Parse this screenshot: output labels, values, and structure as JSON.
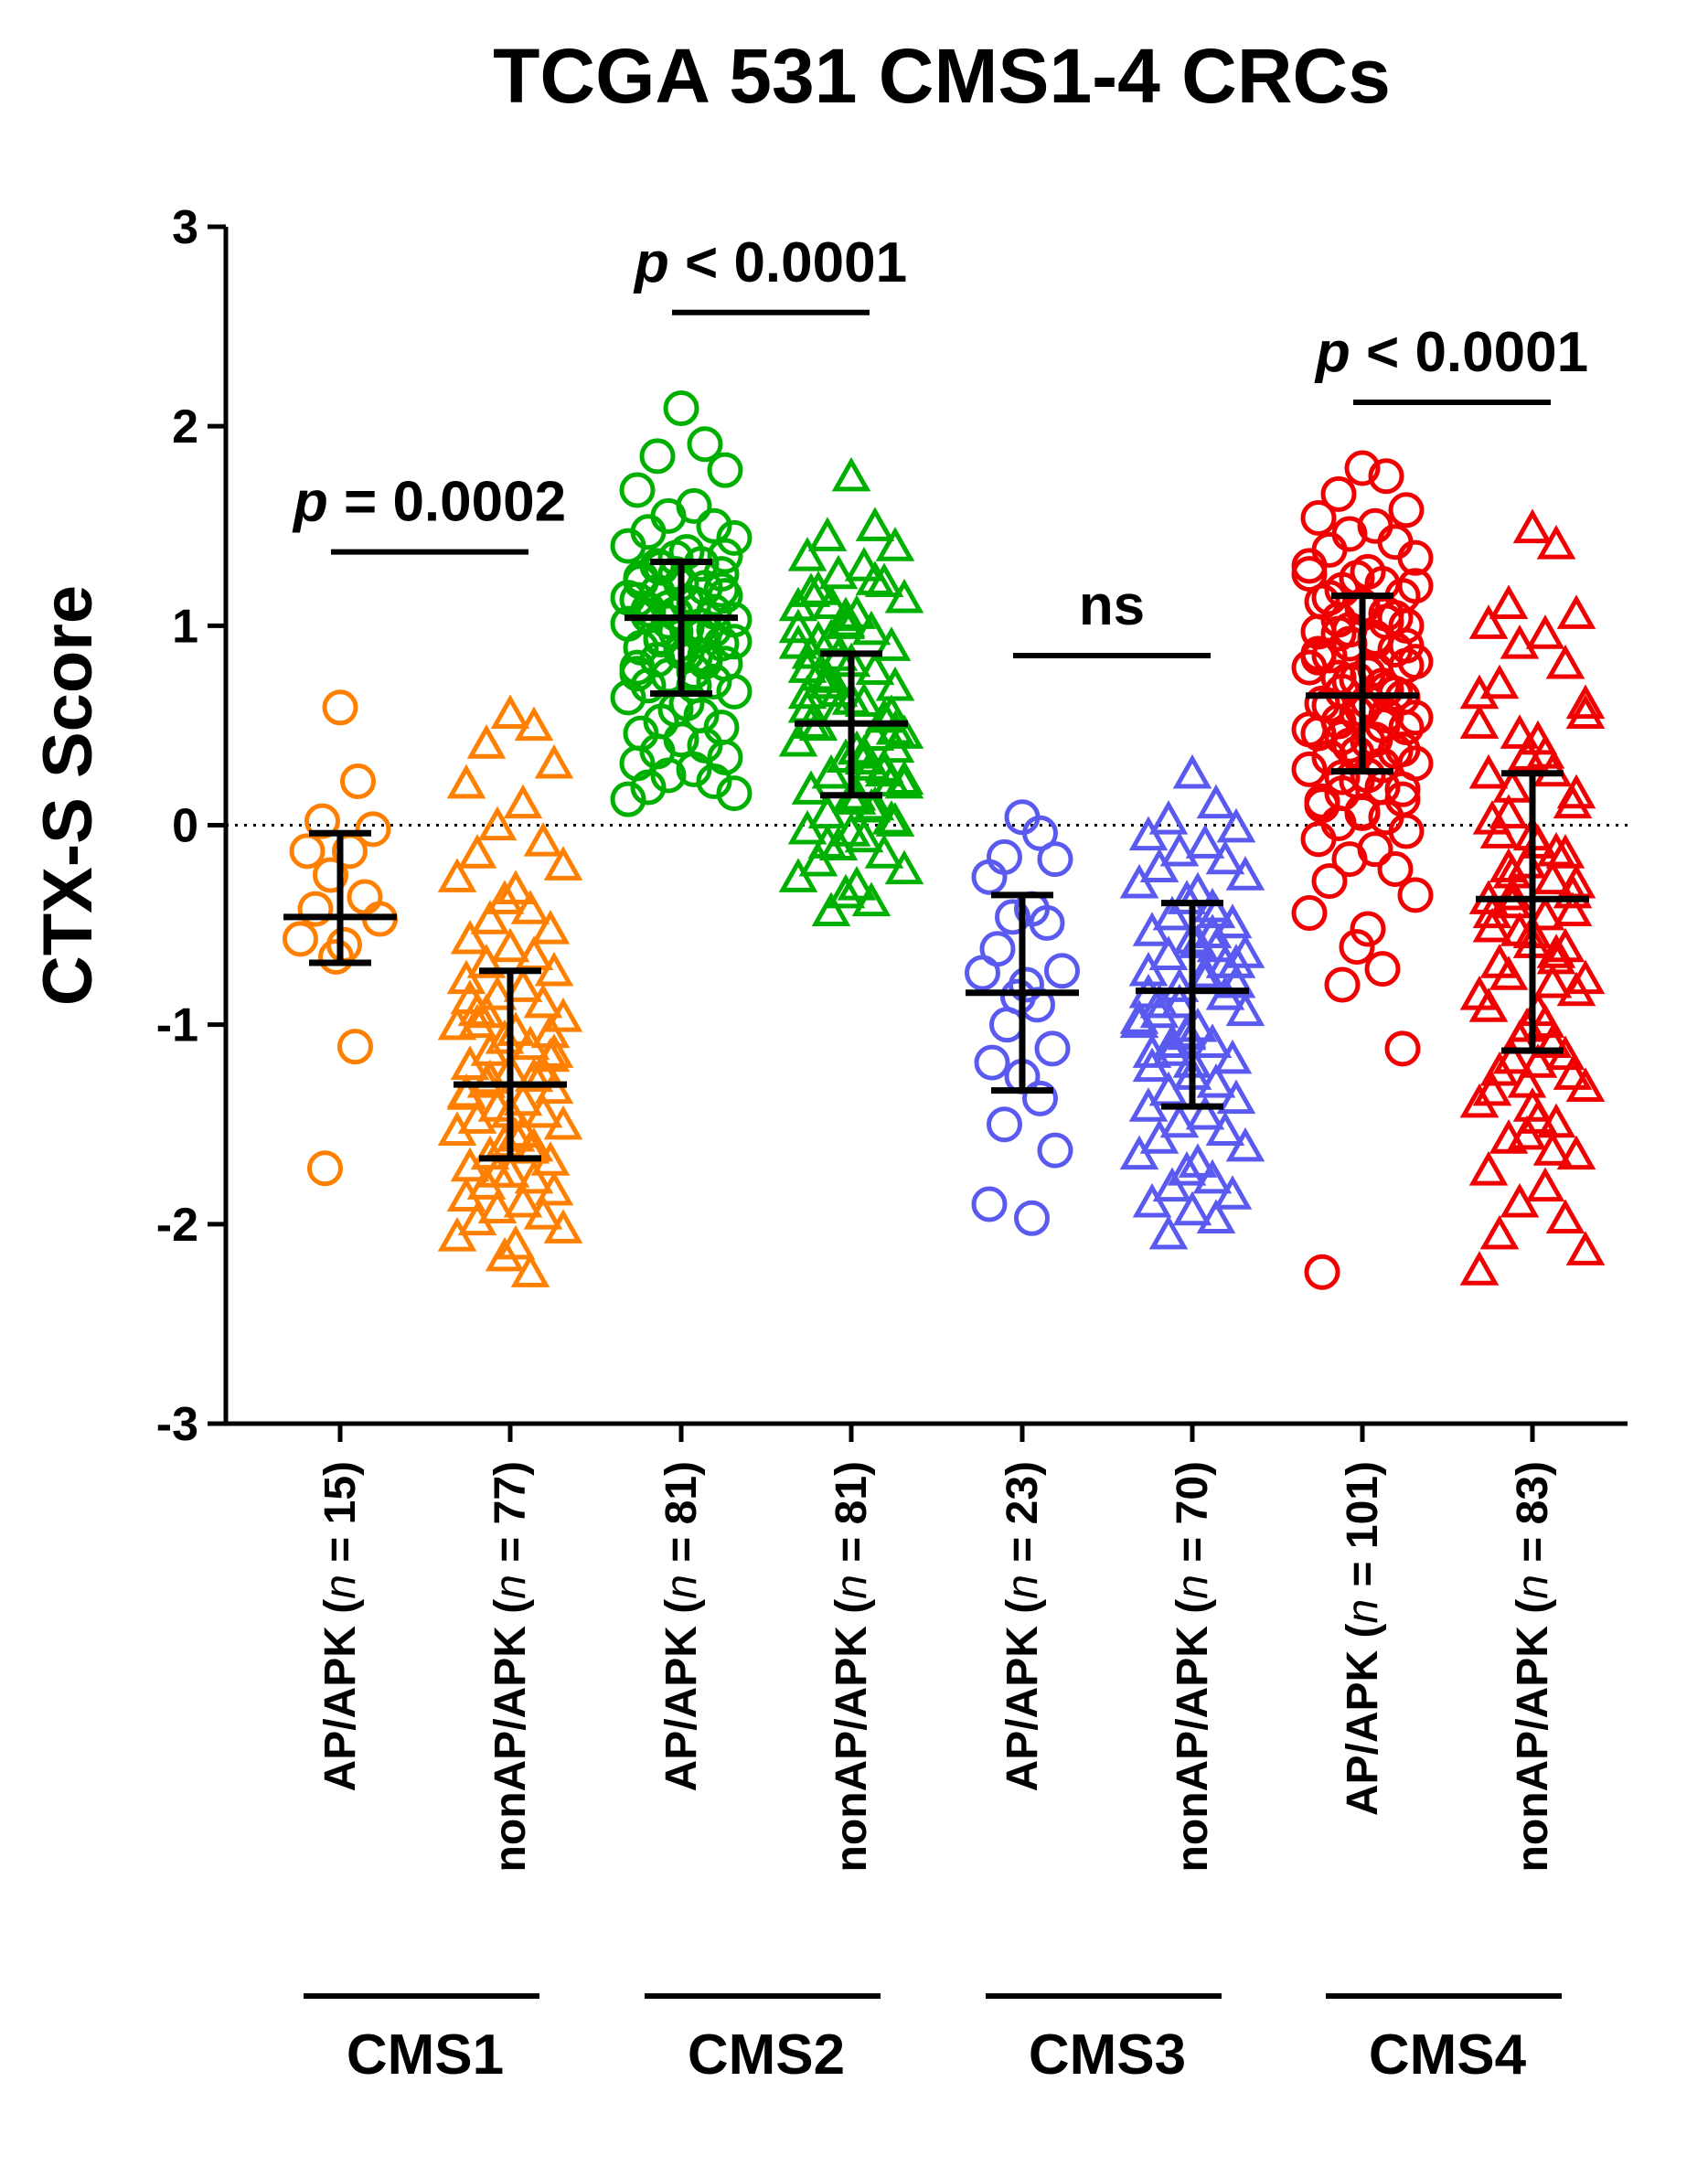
{
  "chart_data": {
    "type": "scatter",
    "title": "TCGA 531 CMS1-4 CRCs",
    "ylabel": "CTX-S Score",
    "xlabel": "",
    "ylim": [
      -3,
      3
    ],
    "yticks": [
      "3",
      "2",
      "1",
      "0",
      "-1",
      "-2",
      "-3"
    ],
    "reference_line": 0,
    "groups": [
      "CMS1",
      "CMS2",
      "CMS3",
      "CMS4"
    ],
    "categories": [
      {
        "label": "AP/APK",
        "n_label": "(n = 15)",
        "n_prefix": "(",
        "n_italic": "n",
        "n_suffix": " = 15)",
        "group": "CMS1",
        "color": "#FF8000",
        "marker": "circle",
        "n": 15,
        "mean": -0.46,
        "sd_low": -0.69,
        "sd_high": -0.04
      },
      {
        "label": "nonAP/APK",
        "n_label": "(n = 77)",
        "n_prefix": "(",
        "n_italic": "n",
        "n_suffix": " = 77)",
        "group": "CMS1",
        "color": "#FF8000",
        "marker": "triangle",
        "n": 77,
        "mean": -1.3,
        "sd_low": -1.67,
        "sd_high": -0.73
      },
      {
        "label": "AP/APK",
        "n_label": "(n = 81)",
        "n_prefix": "(",
        "n_italic": "n",
        "n_suffix": " = 81)",
        "group": "CMS2",
        "color": "#00B000",
        "marker": "circle",
        "n": 81,
        "mean": 1.04,
        "sd_low": 0.66,
        "sd_high": 1.32
      },
      {
        "label": "nonAP/APK",
        "n_label": "(n = 81)",
        "n_prefix": "(",
        "n_italic": "n",
        "n_suffix": " = 81)",
        "group": "CMS2",
        "color": "#00B000",
        "marker": "triangle",
        "n": 81,
        "mean": 0.51,
        "sd_low": 0.15,
        "sd_high": 0.86
      },
      {
        "label": "AP/APK",
        "n_label": "(n = 23)",
        "n_prefix": "(",
        "n_italic": "n",
        "n_suffix": " = 23)",
        "group": "CMS3",
        "color": "#5A5AF0",
        "marker": "circle",
        "n": 23,
        "mean": -0.84,
        "sd_low": -1.33,
        "sd_high": -0.35
      },
      {
        "label": "nonAP/APK",
        "n_label": "(n = 70)",
        "n_prefix": "(",
        "n_italic": "n",
        "n_suffix": " = 70)",
        "group": "CMS3",
        "color": "#5A5AF0",
        "marker": "triangle",
        "n": 70,
        "mean": -0.83,
        "sd_low": -1.41,
        "sd_high": -0.39
      },
      {
        "label": "AP/APK",
        "n_label": "(n = 101)",
        "n_prefix": "(",
        "n_italic": "n",
        "n_suffix": " = 101)",
        "group": "CMS4",
        "color": "#F00000",
        "marker": "circle",
        "n": 101,
        "mean": 0.65,
        "sd_low": 0.27,
        "sd_high": 1.15
      },
      {
        "label": "nonAP/APK",
        "n_label": "(n = 83)",
        "n_prefix": "(",
        "n_italic": "n",
        "n_suffix": " = 83)",
        "group": "CMS4",
        "color": "#F00000",
        "marker": "triangle",
        "n": 83,
        "mean": -0.37,
        "sd_low": -1.13,
        "sd_high": 0.26
      }
    ],
    "annotations": [
      {
        "text": "p = 0.0002",
        "p": "p",
        "rest": " = 0.0002",
        "between": [
          0,
          1
        ],
        "y": 1.37
      },
      {
        "text": "p < 0.0001",
        "p": "p",
        "rest": " < 0.0001",
        "between": [
          2,
          3
        ],
        "y": 2.57
      },
      {
        "text": "ns",
        "p": "",
        "rest": "ns",
        "between": [
          4,
          5
        ],
        "y": 0.85
      },
      {
        "text": "p < 0.0001",
        "p": "p",
        "rest": " < 0.0001",
        "between": [
          6,
          7
        ],
        "y": 2.12
      }
    ],
    "points": [
      [
        0.59,
        0.22,
        0.02,
        -0.02,
        -0.13,
        -0.13,
        -0.25,
        -0.36,
        -0.42,
        -0.47,
        -0.57,
        -0.6,
        -0.66,
        -1.11,
        -1.72
      ],
      [
        0.55,
        0.49,
        0.4,
        0.3,
        0.2,
        0.1,
        -0.01,
        -0.09,
        -0.15,
        -0.21,
        -0.27,
        -0.33,
        -0.38,
        -0.43,
        -0.48,
        -0.53,
        -0.58,
        -0.62,
        -0.66,
        -0.7,
        -0.74,
        -0.78,
        -0.82,
        -0.86,
        -0.9,
        -0.94,
        -0.97,
        -1.01,
        -1.04,
        -1.08,
        -1.11,
        -1.14,
        -1.17,
        -1.21,
        -1.24,
        -1.27,
        -1.3,
        -1.33,
        -1.36,
        -1.39,
        -1.42,
        -1.45,
        -1.48,
        -1.51,
        -1.54,
        -1.57,
        -1.6,
        -1.63,
        -1.66,
        -1.69,
        -1.72,
        -1.75,
        -1.78,
        -1.81,
        -1.84,
        -1.87,
        -1.9,
        -1.93,
        -1.96,
        -1.99,
        -2.03,
        -2.07,
        -2.11,
        -2.17,
        -2.25,
        -1.28,
        -1.05,
        -0.88,
        -1.45,
        -1.62,
        -0.95,
        -1.15,
        -1.35,
        -1.55,
        -1.75,
        -1.25,
        -1.0
      ],
      [
        2.09,
        1.91,
        1.85,
        1.78,
        1.68,
        1.6,
        1.55,
        1.5,
        1.47,
        1.44,
        1.4,
        1.37,
        1.34,
        1.31,
        1.29,
        1.26,
        1.24,
        1.21,
        1.19,
        1.17,
        1.15,
        1.13,
        1.11,
        1.09,
        1.07,
        1.05,
        1.03,
        1.01,
        0.99,
        0.97,
        0.95,
        0.93,
        0.91,
        0.89,
        0.87,
        0.85,
        0.83,
        0.81,
        0.79,
        0.77,
        0.75,
        0.72,
        0.7,
        0.67,
        0.64,
        0.61,
        0.58,
        0.55,
        0.52,
        0.49,
        0.46,
        0.43,
        0.4,
        0.37,
        0.34,
        0.31,
        0.28,
        0.25,
        0.22,
        0.19,
        0.16,
        0.13,
        1.12,
        1.06,
        1.0,
        0.94,
        1.18,
        1.22,
        0.88,
        0.82,
        1.3,
        1.35,
        0.76,
        0.7,
        1.02,
        0.98,
        1.08,
        0.92,
        1.14,
        0.86,
        1.26
      ],
      [
        1.74,
        1.49,
        1.44,
        1.39,
        1.34,
        1.29,
        1.25,
        1.21,
        1.17,
        1.13,
        1.09,
        1.05,
        1.01,
        0.97,
        0.93,
        0.89,
        0.85,
        0.81,
        0.77,
        0.73,
        0.69,
        0.65,
        0.61,
        0.57,
        0.53,
        0.49,
        0.45,
        0.41,
        0.37,
        0.33,
        0.29,
        0.25,
        0.21,
        0.17,
        0.13,
        0.09,
        0.05,
        0.01,
        -0.03,
        -0.07,
        -0.11,
        -0.15,
        -0.19,
        -0.23,
        -0.27,
        -0.31,
        -0.35,
        -0.39,
        -0.44,
        0.55,
        0.5,
        0.62,
        0.44,
        0.7,
        0.38,
        0.78,
        0.32,
        0.84,
        0.26,
        0.92,
        0.2,
        0.98,
        0.14,
        1.04,
        0.08,
        1.1,
        0.02,
        1.16,
        -0.04,
        1.22,
        -0.1,
        0.47,
        0.58,
        0.35,
        0.66,
        0.28,
        0.74,
        0.22,
        0.9,
        0.12,
        1.0
      ],
      [
        0.04,
        -0.04,
        -0.16,
        -0.17,
        -0.26,
        -0.42,
        -0.46,
        -0.49,
        -0.62,
        -0.73,
        -0.74,
        -0.8,
        -0.86,
        -0.9,
        -1.0,
        -1.12,
        -1.19,
        -1.26,
        -1.37,
        -1.5,
        -1.63,
        -1.9,
        -1.97
      ],
      [
        0.25,
        0.1,
        0.02,
        -0.02,
        -0.06,
        -0.1,
        -0.14,
        -0.18,
        -0.22,
        -0.26,
        -0.3,
        -0.34,
        -0.38,
        -0.42,
        -0.46,
        -0.5,
        -0.54,
        -0.58,
        -0.62,
        -0.66,
        -0.7,
        -0.74,
        -0.78,
        -0.82,
        -0.86,
        -0.9,
        -0.94,
        -0.98,
        -1.02,
        -1.06,
        -1.1,
        -1.14,
        -1.18,
        -1.22,
        -1.26,
        -1.3,
        -1.34,
        -1.38,
        -1.42,
        -1.46,
        -1.5,
        -1.54,
        -1.58,
        -1.62,
        -1.66,
        -1.7,
        -1.74,
        -1.78,
        -1.82,
        -1.86,
        -1.9,
        -1.94,
        -1.98,
        -2.06,
        -0.8,
        -0.85,
        -0.75,
        -0.9,
        -0.7,
        -0.95,
        -0.65,
        -1.0,
        -0.6,
        -1.05,
        -0.55,
        -1.1,
        -0.5,
        -1.15,
        -1.2,
        -0.45
      ],
      [
        1.79,
        1.75,
        1.66,
        1.58,
        1.54,
        1.5,
        1.46,
        1.42,
        1.38,
        1.34,
        1.3,
        1.27,
        1.24,
        1.21,
        1.18,
        1.15,
        1.12,
        1.09,
        1.06,
        1.03,
        1.0,
        0.97,
        0.94,
        0.91,
        0.88,
        0.85,
        0.82,
        0.79,
        0.76,
        0.73,
        0.7,
        0.67,
        0.64,
        0.61,
        0.58,
        0.55,
        0.52,
        0.49,
        0.46,
        0.43,
        0.4,
        0.37,
        0.34,
        0.31,
        0.28,
        0.25,
        0.22,
        0.19,
        0.16,
        0.13,
        0.1,
        0.07,
        0.04,
        0.01,
        -0.03,
        -0.07,
        -0.12,
        -0.17,
        -0.22,
        -0.28,
        -0.35,
        -0.44,
        -0.52,
        -0.61,
        -0.72,
        -0.8,
        -1.12,
        -2.24,
        1.1,
        1.02,
        0.96,
        0.9,
        0.84,
        0.78,
        0.72,
        0.66,
        0.6,
        0.54,
        0.48,
        0.42,
        0.36,
        0.3,
        0.24,
        0.18,
        0.12,
        0.06,
        0.68,
        0.74,
        0.8,
        0.86,
        0.92,
        0.98,
        1.04,
        1.14,
        1.2,
        1.26,
        0.62,
        0.56,
        0.5,
        0.44,
        0.38
      ],
      [
        1.48,
        1.4,
        1.1,
        1.05,
        1.0,
        0.95,
        0.9,
        0.8,
        0.7,
        0.6,
        0.5,
        0.42,
        0.34,
        0.26,
        0.18,
        0.1,
        0.02,
        -0.06,
        -0.14,
        -0.22,
        -0.3,
        -0.38,
        -0.46,
        -0.54,
        -0.62,
        -0.7,
        -0.78,
        -0.86,
        -0.94,
        -1.02,
        -1.1,
        -1.18,
        -1.26,
        -1.34,
        -1.42,
        -1.5,
        -1.58,
        -1.66,
        -1.74,
        -1.82,
        -1.9,
        -1.98,
        -2.06,
        -2.14,
        -2.24,
        -0.1,
        -0.2,
        -0.28,
        -0.36,
        -0.44,
        -0.52,
        -0.6,
        -0.68,
        -0.76,
        -0.84,
        -0.92,
        -1.0,
        -1.08,
        -1.16,
        -1.24,
        -1.32,
        -1.4,
        -1.48,
        -1.56,
        -1.64,
        -0.25,
        -0.35,
        -0.45,
        -0.55,
        -0.65,
        0.05,
        0.15,
        0.25,
        0.35,
        0.45,
        -0.15,
        -0.05,
        0.55,
        0.65,
        -1.2,
        -1.3,
        -0.8,
        -0.4
      ]
    ]
  }
}
